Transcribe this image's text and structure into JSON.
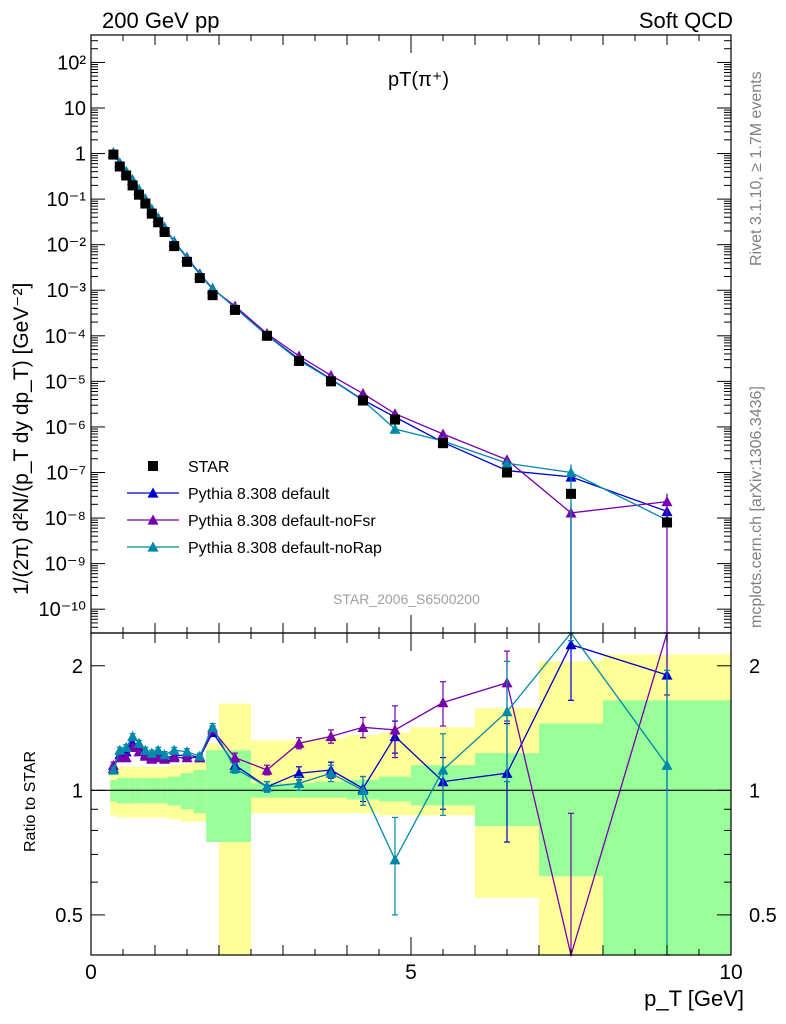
{
  "header": {
    "left": "200 GeV pp",
    "right": "Soft QCD"
  },
  "side_labels": {
    "rivet": "Rivet 3.1.10, ≥ 1.7M events",
    "mcplots": "mcplots.cern.ch [arXiv:1306.3436]"
  },
  "plot_title": "pT(π⁺)",
  "watermark": "STAR_2006_S6500200",
  "colors": {
    "star": "#000000",
    "default": "#0000cc",
    "noFsr": "#7700aa",
    "noRap": "#0088aa",
    "band_outer": "#ffff99",
    "band_inner": "#99ff99"
  },
  "chart_data": [
    {
      "type": "line",
      "title": "pT(π⁺)",
      "ylabel": "1/(2π) d²N/(p_T dy dp_T) [GeV⁻²]",
      "yscale": "log",
      "ylim": [
        3e-11,
        400
      ],
      "xlim": [
        0,
        10
      ],
      "y_ticks": [
        "10⁻¹⁰",
        "10⁻⁹",
        "10⁻⁸",
        "10⁻⁷",
        "10⁻⁶",
        "10⁻⁵",
        "10⁻⁴",
        "10⁻³",
        "10⁻²",
        "10⁻¹",
        "1",
        "10",
        "10²"
      ],
      "legend": {
        "position": "center-left",
        "entries": [
          "STAR",
          "Pythia 8.308 default",
          "Pythia 8.308 default-noFsr",
          "Pythia 8.308 default-noRap"
        ]
      },
      "x": [
        0.35,
        0.45,
        0.55,
        0.65,
        0.75,
        0.85,
        0.95,
        1.05,
        1.15,
        1.3,
        1.5,
        1.7,
        1.9,
        2.25,
        2.75,
        3.25,
        3.75,
        4.25,
        4.75,
        5.5,
        6.5,
        7.5,
        9.0
      ],
      "series": [
        {
          "name": "STAR",
          "marker": "square",
          "values": [
            0.95,
            0.52,
            0.33,
            0.2,
            0.125,
            0.08,
            0.048,
            0.031,
            0.019,
            0.0093,
            0.0042,
            0.00185,
            0.00078,
            0.00037,
            0.0001,
            2.8e-05,
            1e-05,
            3.8e-06,
            1.45e-06,
            4.4e-07,
            1e-07,
            3.4e-08,
            8e-09
          ]
        },
        {
          "name": "Pythia 8.308 default",
          "marker": "triangle",
          "values": [
            1.05,
            0.62,
            0.4,
            0.26,
            0.16,
            0.1,
            0.06,
            0.039,
            0.024,
            0.0118,
            0.0053,
            0.0023,
            0.00108,
            0.00043,
            0.000103,
            3.1e-05,
            1.12e-05,
            3.9e-06,
            1.65e-06,
            4.6e-07,
            1.1e-07,
            8e-08,
            1.4e-08
          ]
        },
        {
          "name": "Pythia 8.308 default-noFsr",
          "marker": "triangle",
          "values": [
            1.0,
            0.6,
            0.39,
            0.25,
            0.155,
            0.097,
            0.058,
            0.038,
            0.023,
            0.0114,
            0.0051,
            0.0022,
            0.00106,
            0.00045,
            0.000112,
            3.6e-05,
            1.35e-05,
            5.4e-06,
            1.95e-06,
            7e-07,
            1.9e-07,
            1.3e-08,
            2.3e-08
          ]
        },
        {
          "name": "Pythia 8.308 default-noRap",
          "marker": "triangle",
          "values": [
            1.03,
            0.62,
            0.41,
            0.27,
            0.165,
            0.1,
            0.06,
            0.039,
            0.024,
            0.0117,
            0.0052,
            0.0022,
            0.00111,
            0.00041,
            0.000102,
            2.9e-05,
            1.1e-05,
            3.8e-06,
            9e-07,
            4.9e-07,
            1.6e-07,
            1e-07,
            9e-09
          ]
        }
      ]
    },
    {
      "type": "line",
      "ylabel": "Ratio to STAR",
      "xlabel": "p_T [GeV]",
      "yscale": "log",
      "ylim": [
        0.4,
        2.4
      ],
      "xlim": [
        0,
        10
      ],
      "y_ticks": [
        "0.5",
        "1",
        "2"
      ],
      "x_ticks": [
        "0",
        "5",
        "10"
      ],
      "reference_line": 1,
      "x": [
        0.35,
        0.45,
        0.55,
        0.65,
        0.75,
        0.85,
        0.95,
        1.05,
        1.15,
        1.3,
        1.5,
        1.7,
        1.9,
        2.25,
        2.75,
        3.25,
        3.75,
        4.25,
        4.75,
        5.5,
        6.5,
        7.5,
        9.0
      ],
      "series": [
        {
          "name": "Pythia 8.308 default",
          "values": [
            1.13,
            1.22,
            1.24,
            1.3,
            1.27,
            1.22,
            1.2,
            1.23,
            1.2,
            1.21,
            1.22,
            1.2,
            1.38,
            1.15,
            1.02,
            1.1,
            1.12,
            1.01,
            1.35,
            1.05,
            1.1,
            2.25,
            1.9
          ],
          "errors": [
            0.02,
            0.02,
            0.02,
            0.02,
            0.02,
            0.02,
            0.02,
            0.02,
            0.02,
            0.02,
            0.02,
            0.02,
            0.03,
            0.03,
            0.03,
            0.04,
            0.05,
            0.07,
            0.12,
            0.15,
            0.35,
            0.6,
            0.9
          ]
        },
        {
          "name": "Pythia 8.308 default-noFsr",
          "values": [
            1.15,
            1.2,
            1.2,
            1.27,
            1.24,
            1.21,
            1.19,
            1.2,
            1.19,
            1.2,
            1.2,
            1.2,
            1.4,
            1.2,
            1.12,
            1.3,
            1.35,
            1.42,
            1.4,
            1.63,
            1.82,
            0.38,
            2.9
          ],
          "errors": [
            0.02,
            0.02,
            0.02,
            0.02,
            0.02,
            0.02,
            0.02,
            0.02,
            0.02,
            0.02,
            0.02,
            0.02,
            0.03,
            0.03,
            0.03,
            0.04,
            0.05,
            0.08,
            0.2,
            0.2,
            0.35,
            0.5,
            1.2
          ]
        },
        {
          "name": "Pythia 8.308 default-noRap",
          "values": [
            1.12,
            1.25,
            1.27,
            1.35,
            1.3,
            1.25,
            1.23,
            1.25,
            1.22,
            1.25,
            1.24,
            1.21,
            1.42,
            1.13,
            1.02,
            1.04,
            1.1,
            1.0,
            0.68,
            1.12,
            1.55,
            3.0,
            1.15
          ],
          "errors": [
            0.02,
            0.02,
            0.02,
            0.02,
            0.02,
            0.02,
            0.02,
            0.02,
            0.02,
            0.02,
            0.02,
            0.02,
            0.03,
            0.03,
            0.03,
            0.04,
            0.05,
            0.08,
            0.18,
            0.25,
            0.5,
            0.7,
            0.8
          ]
        }
      ],
      "uncertainty_bands": {
        "edges": [
          0.3,
          0.4,
          0.5,
          0.6,
          0.7,
          0.8,
          0.9,
          1.0,
          1.1,
          1.2,
          1.4,
          1.6,
          1.8,
          2.0,
          2.5,
          3.0,
          3.5,
          4.0,
          4.5,
          5.0,
          6.0,
          7.0,
          8.0,
          10.0
        ],
        "outer_lo": [
          0.87,
          0.86,
          0.86,
          0.86,
          0.86,
          0.86,
          0.86,
          0.86,
          0.86,
          0.85,
          0.84,
          0.84,
          0.82,
          0.35,
          0.88,
          0.88,
          0.88,
          0.88,
          0.87,
          0.87,
          0.55,
          0.36,
          0.36
        ],
        "outer_hi": [
          1.13,
          1.14,
          1.14,
          1.14,
          1.14,
          1.14,
          1.14,
          1.14,
          1.14,
          1.15,
          1.16,
          1.17,
          1.3,
          1.62,
          1.32,
          1.32,
          1.34,
          1.36,
          1.38,
          1.42,
          1.58,
          2.05,
          2.13
        ],
        "inner_lo": [
          0.94,
          0.93,
          0.93,
          0.93,
          0.93,
          0.93,
          0.93,
          0.93,
          0.93,
          0.92,
          0.9,
          0.88,
          0.75,
          0.75,
          0.96,
          0.96,
          0.96,
          0.95,
          0.94,
          0.92,
          0.82,
          0.62,
          0.4
        ],
        "inner_hi": [
          1.06,
          1.07,
          1.07,
          1.07,
          1.07,
          1.07,
          1.07,
          1.07,
          1.07,
          1.08,
          1.1,
          1.12,
          1.25,
          1.25,
          1.04,
          1.04,
          1.05,
          1.06,
          1.08,
          1.15,
          1.23,
          1.45,
          1.65
        ]
      }
    }
  ]
}
